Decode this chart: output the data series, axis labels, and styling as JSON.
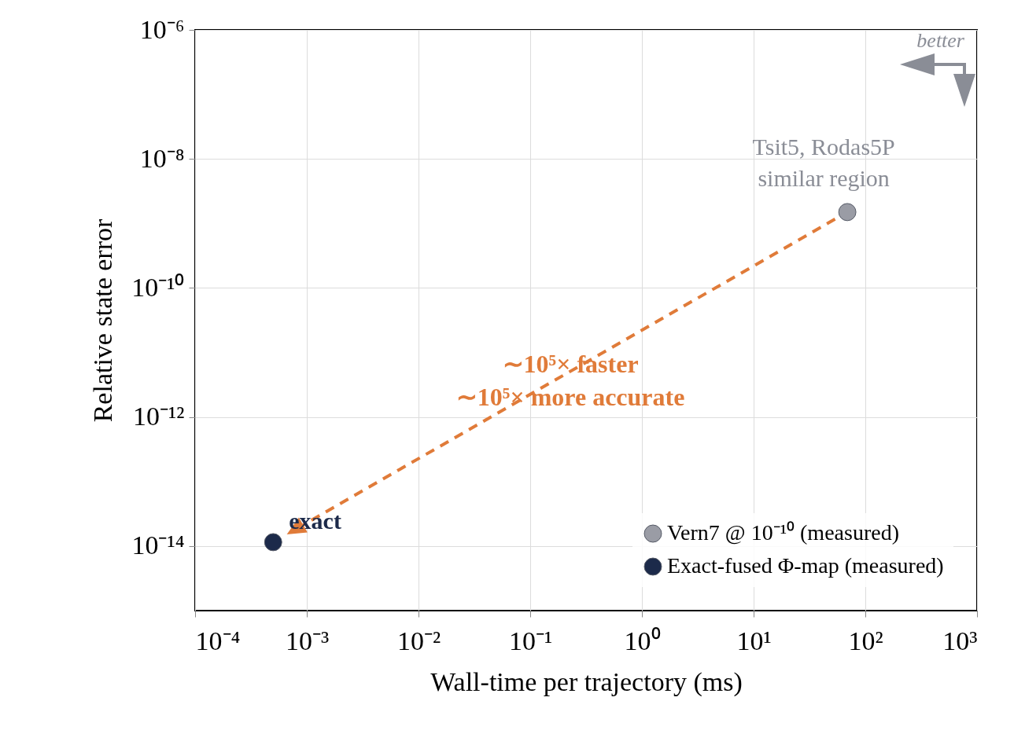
{
  "chart_data": {
    "type": "scatter",
    "xlabel": "Wall-time per trajectory (ms)",
    "ylabel": "Relative state error",
    "log": "xy",
    "grid": true,
    "legend": "bottom right",
    "marker": "circle",
    "xlim": [
      0.0001,
      1000
    ],
    "ylim": [
      1e-15,
      1e-06
    ],
    "xticks": [
      {
        "value": 0.0001,
        "label": "10⁻⁴"
      },
      {
        "value": 0.001,
        "label": "10⁻³"
      },
      {
        "value": 0.01,
        "label": "10⁻²"
      },
      {
        "value": 0.1,
        "label": "10⁻¹"
      },
      {
        "value": 1,
        "label": "10⁰"
      },
      {
        "value": 10,
        "label": "10¹"
      },
      {
        "value": 100,
        "label": "10²"
      },
      {
        "value": 1000,
        "label": "10³"
      }
    ],
    "yticks": [
      {
        "value": 1e-06,
        "label": "10⁻⁶"
      },
      {
        "value": 1e-08,
        "label": "10⁻⁸"
      },
      {
        "value": 1e-10,
        "label": "10⁻¹⁰"
      },
      {
        "value": 1e-12,
        "label": "10⁻¹²"
      },
      {
        "value": 1e-14,
        "label": "10⁻¹⁴"
      }
    ],
    "series": [
      {
        "name": "Vern7 @ 10⁻¹⁰ (measured)",
        "color": "#9a9ca5",
        "x": [
          69
        ],
        "values": [
          1.5e-09
        ]
      },
      {
        "name": "Exact-fused Φ-map (measured)",
        "color": "#1c2a4a",
        "x": [
          0.0005
        ],
        "values": [
          1.15e-14
        ]
      }
    ],
    "annotations": [
      "better",
      {
        "text": "Tsit5, Rodas5P\nsimilar region",
        "x": 69,
        "y": 1.5e-09
      },
      {
        "text": "exact",
        "x": 0.0005,
        "y": 1.15e-14
      },
      "∼10⁵× faster",
      "∼10⁵× more accurate"
    ]
  }
}
